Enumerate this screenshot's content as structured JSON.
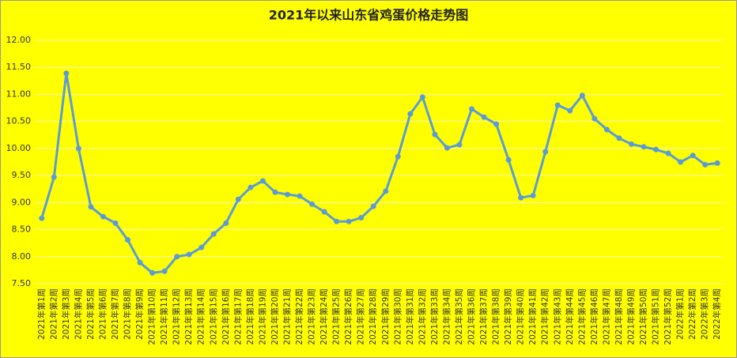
{
  "chart_data": {
    "type": "line",
    "title": "2021年以来山东省鸡蛋价格走势图",
    "categories": [
      "2021年第1周",
      "2021年第2周",
      "2021年第3周",
      "2021年第4周",
      "2021年第5周",
      "2021年第6周",
      "2021年第7周",
      "2021年第8周",
      "2021年第9周",
      "2021年第10周",
      "2021年第11周",
      "2021年第12周",
      "2021年第13周",
      "2021年第14周",
      "2021年第15周",
      "2021年第16周",
      "2021年第17周",
      "2021年第18周",
      "2021年第19周",
      "2021年第20周",
      "2021年第21周",
      "2021年第22周",
      "2021年第23周",
      "2021年第24周",
      "2021年第25周",
      "2021年第26周",
      "2021年第27周",
      "2021年第28周",
      "2021年第29周",
      "2021年第30周",
      "2021年第31周",
      "2021年第32周",
      "2021年第33周",
      "2021年第34周",
      "2021年第35周",
      "2021年第36周",
      "2021年第37周",
      "2021年第38周",
      "2021年第39周",
      "2021年第40周",
      "2021年第41周",
      "2021年第42周",
      "2021年第43周",
      "2021年第44周",
      "2021年第45周",
      "2021年第46周",
      "2021年第47周",
      "2021年第48周",
      "2021年第49周",
      "2021年第50周",
      "2021年第51周",
      "2021年第52周",
      "2022年第1周",
      "2022年第2周",
      "2022年第3周",
      "2022年第4周"
    ],
    "values": [
      8.71,
      9.47,
      11.39,
      10.0,
      8.92,
      8.74,
      8.62,
      8.31,
      7.89,
      7.7,
      7.73,
      8.0,
      8.04,
      8.17,
      8.42,
      8.62,
      9.06,
      9.28,
      9.4,
      9.19,
      9.15,
      9.12,
      8.97,
      8.83,
      8.65,
      8.65,
      8.72,
      8.93,
      9.21,
      9.85,
      10.64,
      10.95,
      10.26,
      10.01,
      10.07,
      10.73,
      10.58,
      10.45,
      9.79,
      9.09,
      9.13,
      9.94,
      10.8,
      10.7,
      10.98,
      10.55,
      10.35,
      10.19,
      10.08,
      10.03,
      9.98,
      9.91,
      9.75,
      9.87,
      9.7,
      9.73
    ],
    "color": "#5b9bd5",
    "ylim": [
      7.5,
      12
    ],
    "yticks": [
      {
        "value": 7.5,
        "label": "7.50"
      },
      {
        "value": 8,
        "label": "8.00"
      },
      {
        "value": 8.5,
        "label": "8.50"
      },
      {
        "value": 9,
        "label": "9.00"
      },
      {
        "value": 9.5,
        "label": "9.50"
      },
      {
        "value": 10,
        "label": "10.00"
      },
      {
        "value": 10.5,
        "label": "10.50"
      },
      {
        "value": 11,
        "label": "11.00"
      },
      {
        "value": 11.5,
        "label": "11.50"
      },
      {
        "value": 12,
        "label": "12.00"
      }
    ],
    "grid": true
  }
}
